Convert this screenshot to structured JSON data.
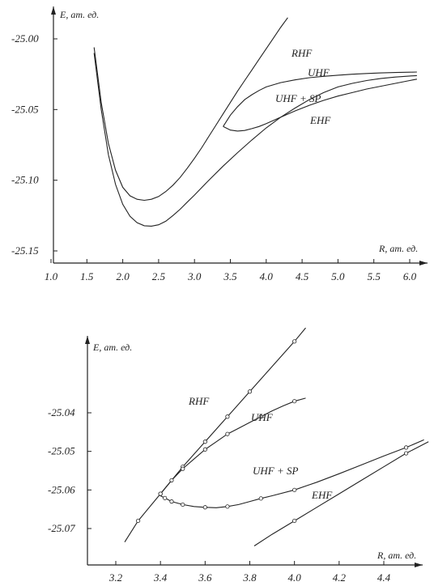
{
  "chart_data": [
    {
      "type": "line",
      "ylabel": "E, ат. ед.",
      "xlabel": "R, ат. ед.",
      "xlim": [
        1.0,
        6.2
      ],
      "ylim": [
        -25.16,
        -24.99
      ],
      "xticks": [
        1.0,
        1.5,
        2.0,
        2.5,
        3.0,
        3.5,
        4.0,
        4.5,
        5.0,
        5.5,
        6.0
      ],
      "xtick_labels": [
        "1.0",
        "1.5",
        "2.0",
        "2.5",
        "3.0",
        "3.5",
        "4.0",
        "4.5",
        "5.0",
        "5.5",
        "6.0"
      ],
      "yticks": [
        -25.0,
        -25.05,
        -25.1,
        -25.15
      ],
      "ytick_labels": [
        "-25.00",
        "-25.05",
        "-25.10",
        "-25.15"
      ],
      "series": [
        {
          "name": "RHF",
          "x": [
            1.6,
            1.7,
            1.8,
            1.9,
            2.0,
            2.1,
            2.2,
            2.3,
            2.4,
            2.5,
            2.6,
            2.7,
            2.8,
            2.9,
            3.0,
            3.1,
            3.2,
            3.3,
            3.4,
            3.5,
            3.6,
            3.7,
            3.8,
            3.9,
            4.0,
            4.1,
            4.2,
            4.3
          ],
          "y": [
            -25.006,
            -25.045,
            -25.074,
            -25.093,
            -25.105,
            -25.111,
            -25.1135,
            -25.1142,
            -25.1135,
            -25.1115,
            -25.108,
            -25.1035,
            -25.098,
            -25.0915,
            -25.0845,
            -25.077,
            -25.069,
            -25.061,
            -25.053,
            -25.045,
            -25.037,
            -25.0295,
            -25.022,
            -25.0145,
            -25.007,
            -24.9995,
            -24.992,
            -24.985
          ]
        },
        {
          "name": "UHF",
          "x": [
            3.4,
            3.5,
            3.6,
            3.7,
            3.8,
            3.9,
            4.0,
            4.2,
            4.4,
            4.6,
            4.8,
            5.0,
            5.2,
            5.4,
            5.6,
            5.8,
            6.0,
            6.1
          ],
          "y": [
            -25.062,
            -25.054,
            -25.048,
            -25.043,
            -25.0395,
            -25.0365,
            -25.034,
            -25.031,
            -25.029,
            -25.0275,
            -25.0265,
            -25.0257,
            -25.025,
            -25.0245,
            -25.0241,
            -25.0238,
            -25.0236,
            -25.0235
          ]
        },
        {
          "name": "UHF + SP",
          "x": [
            3.4,
            3.5,
            3.6,
            3.7,
            3.8,
            3.9,
            4.0,
            4.2,
            4.4,
            4.6,
            4.8,
            5.0,
            5.2,
            5.4,
            5.6,
            5.8,
            6.0,
            6.1
          ],
          "y": [
            -25.062,
            -25.0645,
            -25.0652,
            -25.0648,
            -25.0635,
            -25.062,
            -25.06,
            -25.0555,
            -25.051,
            -25.047,
            -25.0435,
            -25.0405,
            -25.038,
            -25.0355,
            -25.0335,
            -25.0315,
            -25.0295,
            -25.0285
          ]
        },
        {
          "name": "EHF",
          "x": [
            1.6,
            1.7,
            1.8,
            1.9,
            2.0,
            2.1,
            2.2,
            2.3,
            2.4,
            2.5,
            2.6,
            2.7,
            2.8,
            2.9,
            3.0,
            3.2,
            3.4,
            3.6,
            3.8,
            4.0,
            4.2,
            4.4,
            4.6,
            4.8,
            5.0,
            5.2,
            5.4,
            5.6,
            5.8,
            6.0,
            6.1
          ],
          "y": [
            -25.01,
            -25.05,
            -25.082,
            -25.103,
            -25.117,
            -25.1255,
            -25.13,
            -25.1322,
            -25.1325,
            -25.1315,
            -25.129,
            -25.125,
            -25.1205,
            -25.1155,
            -25.1105,
            -25.1,
            -25.09,
            -25.0805,
            -25.0715,
            -25.063,
            -25.0555,
            -25.049,
            -25.043,
            -25.038,
            -25.034,
            -25.0315,
            -25.0295,
            -25.028,
            -25.027,
            -25.0263,
            -25.026
          ]
        }
      ],
      "annotations": [
        "RHF",
        "UHF",
        "UHF + SP",
        "EHF"
      ]
    },
    {
      "type": "line",
      "ylabel": "E, ат. ед.",
      "xlabel": "R, ат. ед.",
      "xlim": [
        3.1,
        4.62
      ],
      "ylim": [
        -25.0745,
        -25.023
      ],
      "xticks": [
        3.2,
        3.4,
        3.6,
        3.8,
        4.0,
        4.2,
        4.4
      ],
      "xtick_labels": [
        "3.2",
        "3.4",
        "3.6",
        "3.8",
        "4.0",
        "4.2",
        "4.4"
      ],
      "yticks": [
        -25.04,
        -25.05,
        -25.06,
        -25.07
      ],
      "ytick_labels": [
        "-25.04",
        "-25.05",
        "-25.06",
        "-25.07"
      ],
      "series": [
        {
          "name": "RHF",
          "x": [
            3.24,
            3.3,
            3.4,
            3.45,
            3.5,
            3.6,
            3.7,
            3.8,
            3.9,
            4.0,
            4.05
          ],
          "y": [
            -25.0735,
            -25.068,
            -25.061,
            -25.0575,
            -25.054,
            -25.0475,
            -25.041,
            -25.0345,
            -25.028,
            -25.0215,
            -25.018
          ],
          "markers_x": [
            3.3,
            3.4,
            3.5,
            3.6,
            3.7,
            3.8,
            4.0
          ]
        },
        {
          "name": "UHF",
          "x": [
            3.4,
            3.45,
            3.5,
            3.55,
            3.6,
            3.65,
            3.7,
            3.75,
            3.8,
            3.85,
            3.9,
            3.95,
            4.0,
            4.05
          ],
          "y": [
            -25.061,
            -25.0575,
            -25.0545,
            -25.052,
            -25.0495,
            -25.0475,
            -25.0455,
            -25.044,
            -25.0425,
            -25.041,
            -25.0395,
            -25.0382,
            -25.037,
            -25.0362
          ],
          "markers_x": [
            3.4,
            3.45,
            3.5,
            3.6,
            3.7,
            3.85,
            4.0
          ]
        },
        {
          "name": "UHF + SP",
          "x": [
            3.4,
            3.45,
            3.5,
            3.55,
            3.6,
            3.65,
            3.7,
            3.75,
            3.8,
            3.85,
            3.9,
            4.0,
            4.1,
            4.2,
            4.3,
            4.4,
            4.5,
            4.58
          ],
          "y": [
            -25.0615,
            -25.063,
            -25.0638,
            -25.0643,
            -25.0645,
            -25.0646,
            -25.0643,
            -25.0638,
            -25.063,
            -25.0622,
            -25.0615,
            -25.06,
            -25.058,
            -25.0558,
            -25.0535,
            -25.0512,
            -25.049,
            -25.047
          ],
          "markers_x": [
            3.42,
            3.45,
            3.5,
            3.6,
            3.7,
            3.85,
            4.0,
            4.5
          ]
        },
        {
          "name": "EHF",
          "x": [
            3.82,
            3.9,
            4.0,
            4.1,
            4.2,
            4.3,
            4.4,
            4.5,
            4.6
          ],
          "y": [
            -25.0745,
            -25.0715,
            -25.068,
            -25.0645,
            -25.061,
            -25.0575,
            -25.054,
            -25.0505,
            -25.0475
          ],
          "markers_x": [
            4.0,
            4.5
          ]
        }
      ],
      "annotations": [
        "RHF",
        "UHF",
        "UHF + SP",
        "EHF"
      ]
    }
  ]
}
